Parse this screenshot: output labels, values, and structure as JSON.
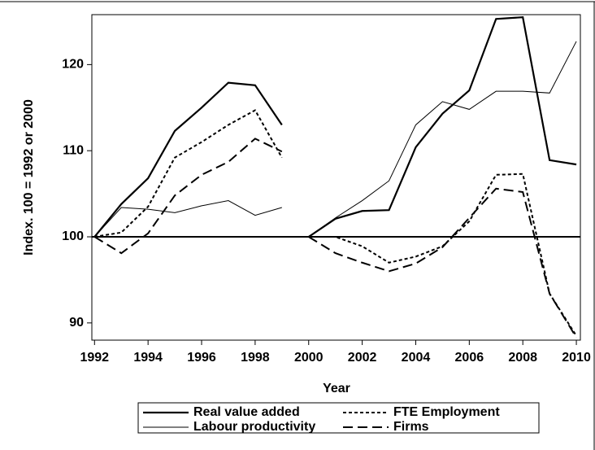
{
  "chart_data": {
    "type": "line",
    "x_label": "Year",
    "y_label": "Index. 100 = 1992 or 2000",
    "x": [
      [
        1992,
        1993,
        1994,
        1995,
        1996,
        1997,
        1998,
        1999
      ],
      [
        2000,
        2001,
        2002,
        2003,
        2004,
        2005,
        2006,
        2007,
        2008,
        2009,
        2010
      ]
    ],
    "series": [
      {
        "name": "Real value added",
        "color": "#000000",
        "width": 2.2,
        "dash": "none",
        "values": [
          [
            100,
            103.8,
            106.8,
            112.3,
            115,
            117.9,
            117.6,
            113
          ],
          [
            100,
            102.1,
            103,
            103.1,
            110.4,
            114.3,
            117,
            125.3,
            125.5,
            108.9,
            108.4
          ]
        ]
      },
      {
        "name": "FTE Employment",
        "color": "#000000",
        "width": 2,
        "dash": "4 3",
        "values": [
          [
            100,
            100.5,
            103.5,
            109.2,
            111,
            113,
            114.7,
            109.2
          ],
          [
            100,
            100,
            98.9,
            97,
            97.7,
            98.9,
            101.8,
            107.2,
            107.3,
            93.4,
            88.5
          ]
        ]
      },
      {
        "name": "Labour productivity",
        "color": "#000000",
        "width": 1,
        "dash": "none",
        "values": [
          [
            100,
            103.4,
            103.2,
            102.8,
            103.6,
            104.2,
            102.5,
            103.4
          ],
          [
            100,
            102.2,
            104.2,
            106.5,
            113,
            115.7,
            114.8,
            116.9,
            116.9,
            116.7,
            122.7
          ]
        ]
      },
      {
        "name": "Firms",
        "color": "#000000",
        "width": 2,
        "dash": "12 6",
        "values": [
          [
            100,
            98.1,
            100.4,
            104.8,
            107.2,
            108.7,
            111.4,
            109.9
          ],
          [
            100,
            98.1,
            97,
            96,
            96.9,
            98.8,
            102.2,
            105.6,
            105.2,
            93.4,
            88.3
          ]
        ]
      }
    ],
    "xlim": [
      1991.9,
      2010.15
    ],
    "ylim": [
      88,
      125.8
    ],
    "xticks": [
      1992,
      1994,
      1996,
      1998,
      2000,
      2002,
      2004,
      2006,
      2008,
      2010
    ],
    "yticks": [
      90,
      100,
      110,
      120
    ],
    "hline": 100,
    "legend": "bottom"
  }
}
